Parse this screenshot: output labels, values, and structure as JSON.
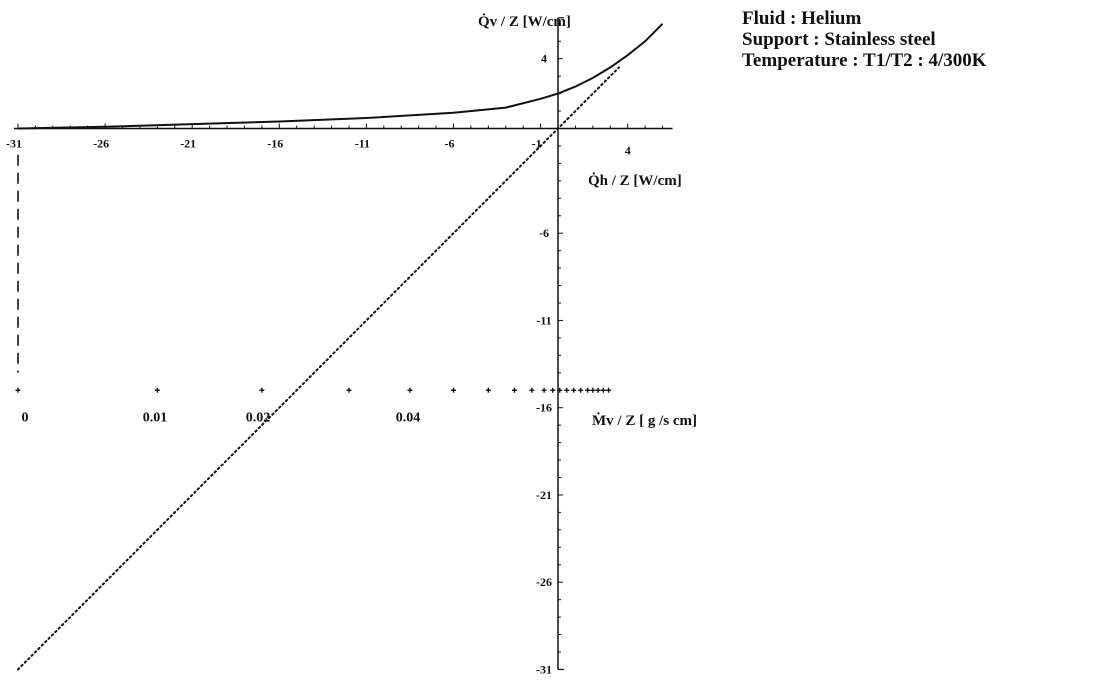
{
  "annotations": [
    "Fluid : Helium",
    "Support : Stainless steel",
    "Temperature : T1/T2 : 4/300K"
  ],
  "axis_titles": {
    "qv": "Q̇v / Z  [W/cm]",
    "qh": "Q̇h / Z  [W/cm]",
    "mv": "Ṁv / Z [ g /s cm]"
  },
  "chart_data": {
    "type": "line",
    "xlabel": "Q̇h / Z  [W/cm]",
    "ylabel": "Q̇v / Z  [W/cm]",
    "secondary_xlabel": "Ṁv / Z [ g /s cm]",
    "xlim": [
      -31,
      6
    ],
    "ylim": [
      -31,
      6
    ],
    "x_ticks": [
      -31,
      -26,
      -21,
      -16,
      -11,
      -6,
      -1,
      4
    ],
    "y_ticks": [
      4,
      -6,
      -11,
      -16,
      -21,
      -26,
      -31
    ],
    "mv_ticks": [
      "0",
      "0.01",
      "0.02",
      "0.04"
    ],
    "mv_tick_values": [
      0,
      0.01,
      0.02,
      0.04
    ],
    "mv_marker_x": [
      -31,
      -23,
      -17,
      -12,
      -8.5,
      -6,
      -4,
      -2.5,
      -1.5,
      -0.8,
      -0.3,
      0.1,
      0.5,
      0.9,
      1.3,
      1.7,
      2.0,
      2.3,
      2.6,
      2.9
    ],
    "mv_marker_y": -15,
    "series": [
      {
        "style": "solid",
        "x": [
          -31,
          -26,
          -21,
          -16,
          -11,
          -6,
          -3,
          -1,
          0,
          1,
          2,
          3,
          4,
          5,
          6
        ],
        "y": [
          0.0,
          0.1,
          0.25,
          0.4,
          0.6,
          0.9,
          1.2,
          1.7,
          2.0,
          2.4,
          2.9,
          3.5,
          4.2,
          5.0,
          6.0
        ]
      },
      {
        "style": "dotted",
        "x": [
          -31,
          3.5
        ],
        "y": [
          -31,
          3.5
        ]
      },
      {
        "style": "dashed",
        "x": [
          -31,
          -31
        ],
        "y": [
          -1.5,
          -14
        ]
      }
    ]
  }
}
